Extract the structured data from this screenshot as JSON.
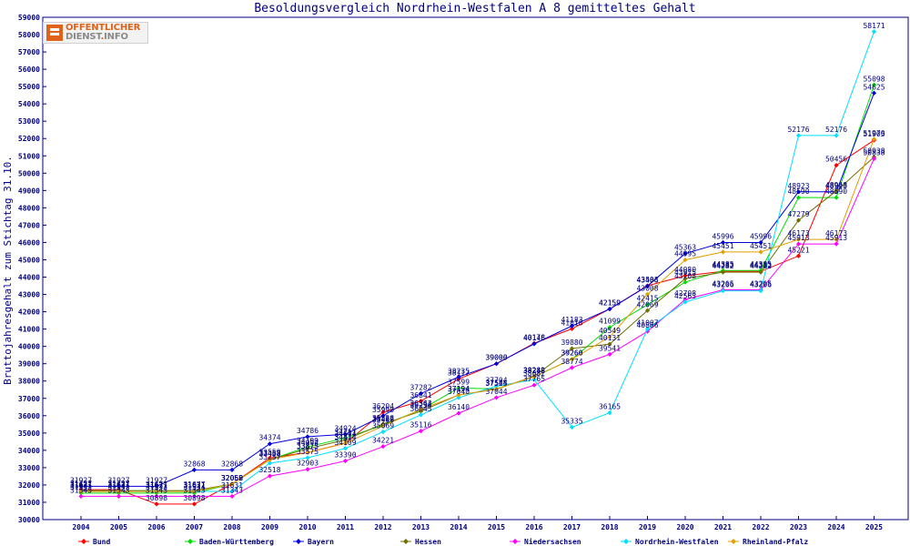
{
  "chart_data": {
    "type": "line",
    "title": "Besoldungsvergleich Nordrhein-Westfalen A 8 gemitteltes Gehalt",
    "xlabel": "",
    "ylabel": "Bruttojahresgehalt zum Stichtag 31.10.",
    "x": [
      "2004",
      "2005",
      "2006",
      "2007",
      "2008",
      "2009",
      "2010",
      "2011",
      "2012",
      "2013",
      "2014",
      "2015",
      "2016",
      "2017",
      "2018",
      "2019",
      "2020",
      "2021",
      "2022",
      "2023",
      "2024",
      "2025"
    ],
    "ylim": [
      30000,
      59000
    ],
    "yticks": [
      "30000",
      "31000",
      "32000",
      "33000",
      "34000",
      "35000",
      "36000",
      "37000",
      "38000",
      "39000",
      "40000",
      "41000",
      "42000",
      "43000",
      "44000",
      "45000",
      "46000",
      "47000",
      "48000",
      "49000",
      "50000",
      "51000",
      "52000",
      "53000",
      "54000",
      "55000",
      "56000",
      "57000",
      "58000",
      "59000"
    ],
    "grid": false,
    "legend_position": "bottom",
    "series": [
      {
        "name": "Bund",
        "color": "#ff0000",
        "values": [
          31727,
          31727,
          30898,
          30898,
          32062,
          33559,
          33875,
          34414,
          36204,
          36841,
          38117,
          39000,
          40178,
          41018,
          42159,
          43503,
          44080,
          44333,
          44333,
          45221,
          50456,
          51905
        ]
      },
      {
        "name": "Baden-Württemberg",
        "color": "#00e000",
        "values": [
          31532,
          31532,
          31532,
          31534,
          32059,
          33458,
          34199,
          34711,
          35457,
          36344,
          37599,
          37544,
          38248,
          39260,
          41099,
          42415,
          43708,
          44385,
          44385,
          48590,
          48590,
          55098
        ]
      },
      {
        "name": "Bayern",
        "color": "#0000e0",
        "values": [
          31927,
          31927,
          31927,
          32868,
          32868,
          34374,
          34786,
          34924,
          35998,
          37282,
          38235,
          39000,
          40146,
          41183,
          42159,
          43486,
          45363,
          45996,
          45996,
          48923,
          48923,
          54625
        ]
      },
      {
        "name": "Hessen",
        "color": "#707000",
        "values": [
          31677,
          31677,
          31677,
          31677,
          32059,
          33458,
          34094,
          34604,
          35526,
          36254,
          37194,
          37525,
          38282,
          39880,
          40131,
          42069,
          43915,
          44282,
          44282,
          47279,
          48968,
          50938
        ]
      },
      {
        "name": "Niedersachsen",
        "color": "#ff00ff",
        "values": [
          31343,
          31343,
          31343,
          31343,
          31343,
          32518,
          32903,
          33390,
          34221,
          35116,
          36140,
          37044,
          37765,
          38774,
          39541,
          40866,
          42708,
          43265,
          43265,
          45913,
          45913,
          50838
        ]
      },
      {
        "name": "Nordrhein-Westfalen",
        "color": "#00e0ff",
        "values": [
          31631,
          31631,
          31631,
          31631,
          31631,
          33257,
          33575,
          34109,
          35069,
          36045,
          37040,
          37704,
          38082,
          35335,
          36165,
          41007,
          42563,
          43206,
          43206,
          52176,
          52176,
          58171
        ]
      },
      {
        "name": "Rheinland-Pfalz",
        "color": "#e0a000",
        "values": [
          31621,
          31621,
          31621,
          31621,
          32058,
          33468,
          33875,
          34414,
          35406,
          36363,
          37194,
          37544,
          38248,
          39260,
          40549,
          43008,
          44995,
          45451,
          45451,
          46173,
          46173,
          51970
        ]
      }
    ]
  }
}
